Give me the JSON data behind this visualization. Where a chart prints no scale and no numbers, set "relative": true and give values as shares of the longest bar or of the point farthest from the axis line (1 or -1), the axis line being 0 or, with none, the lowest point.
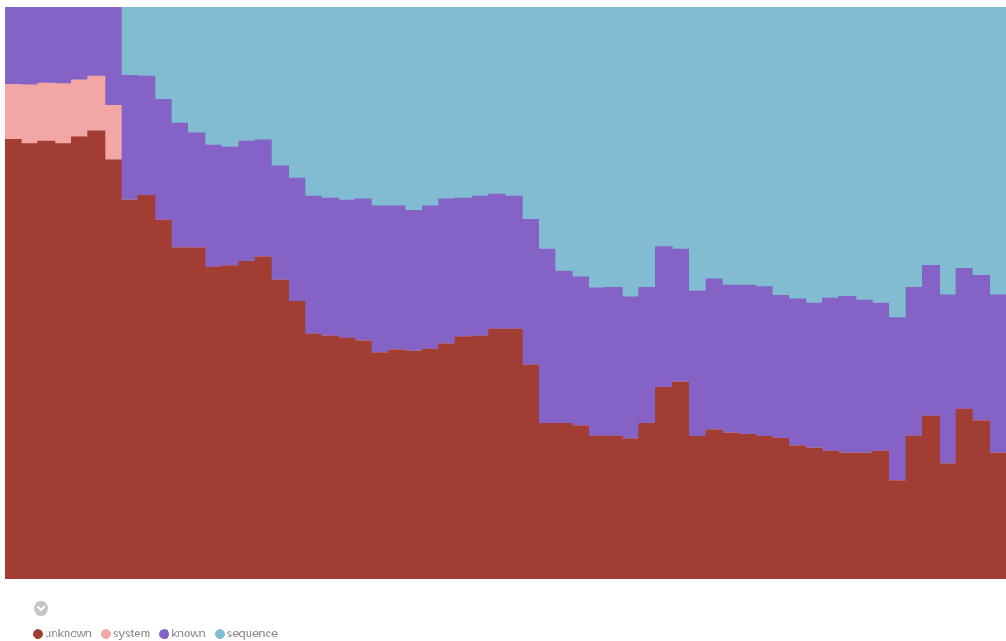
{
  "chart_data": {
    "type": "bar",
    "stacked": true,
    "relative": true,
    "legend": "bottom left",
    "categories": [
      null,
      null,
      null,
      null,
      null,
      null,
      null,
      null,
      null,
      null,
      null,
      null,
      null,
      null,
      null,
      null,
      null,
      null,
      null,
      null,
      null,
      null,
      null,
      null,
      null,
      null,
      null,
      null,
      null,
      null,
      null,
      null,
      null,
      null,
      null,
      null,
      null,
      null,
      null,
      null,
      null,
      null,
      null,
      null,
      null,
      null,
      null,
      null,
      null,
      null,
      null,
      null,
      null,
      null,
      null,
      null,
      null,
      null,
      null,
      null
    ],
    "series": [
      {
        "name": "unknown",
        "color": "#a23d33",
        "values": [
          0.769,
          0.762,
          0.766,
          0.762,
          0.773,
          0.784,
          0.733,
          0.663,
          0.672,
          0.628,
          0.579,
          0.579,
          0.545,
          0.547,
          0.556,
          0.563,
          0.523,
          0.486,
          0.429,
          0.426,
          0.421,
          0.417,
          0.396,
          0.401,
          0.399,
          0.402,
          0.412,
          0.423,
          0.426,
          0.437,
          0.437,
          0.375,
          0.273,
          0.273,
          0.269,
          0.251,
          0.251,
          0.245,
          0.273,
          0.335,
          0.345,
          0.25,
          0.261,
          0.256,
          0.254,
          0.25,
          0.246,
          0.234,
          0.229,
          0.224,
          0.221,
          0.221,
          0.224,
          0.172,
          0.251,
          0.286,
          0.202,
          0.297,
          0.277,
          0.221
        ]
      },
      {
        "name": "system",
        "color": "#f2a7a6",
        "values": [
          0.097,
          0.103,
          0.102,
          0.105,
          0.1,
          0.095,
          0.095,
          0,
          0,
          0,
          0,
          0,
          0,
          0,
          0,
          0,
          0,
          0,
          0,
          0,
          0,
          0,
          0,
          0,
          0,
          0,
          0,
          0,
          0,
          0,
          0,
          0,
          0,
          0,
          0,
          0,
          0,
          0,
          0,
          0,
          0,
          0,
          0,
          0,
          0,
          0,
          0,
          0,
          0,
          0,
          0,
          0,
          0,
          0,
          0,
          0,
          0,
          0,
          0,
          0
        ]
      },
      {
        "name": "known",
        "color": "#8462c6",
        "values": [
          0.134,
          0.135,
          0.132,
          0.133,
          0.127,
          0.121,
          0.172,
          0.218,
          0.207,
          0.211,
          0.219,
          0.202,
          0.215,
          0.208,
          0.21,
          0.205,
          0.199,
          0.215,
          0.24,
          0.24,
          0.242,
          0.248,
          0.256,
          0.251,
          0.246,
          0.25,
          0.253,
          0.243,
          0.243,
          0.237,
          0.232,
          0.254,
          0.304,
          0.266,
          0.259,
          0.258,
          0.259,
          0.248,
          0.237,
          0.246,
          0.232,
          0.254,
          0.264,
          0.259,
          0.261,
          0.261,
          0.251,
          0.256,
          0.254,
          0.267,
          0.273,
          0.267,
          0.259,
          0.285,
          0.259,
          0.262,
          0.296,
          0.246,
          0.254,
          0.277
        ]
      },
      {
        "name": "sequence",
        "color": "#82bcd3",
        "values": [
          0,
          0,
          0,
          0,
          0,
          0,
          0,
          0.119,
          0.121,
          0.161,
          0.202,
          0.219,
          0.24,
          0.245,
          0.234,
          0.232,
          0.278,
          0.299,
          0.331,
          0.334,
          0.337,
          0.335,
          0.348,
          0.348,
          0.355,
          0.348,
          0.335,
          0.334,
          0.331,
          0.326,
          0.331,
          0.371,
          0.423,
          0.461,
          0.472,
          0.491,
          0.49,
          0.507,
          0.49,
          0.419,
          0.423,
          0.496,
          0.475,
          0.485,
          0.485,
          0.489,
          0.503,
          0.51,
          0.517,
          0.509,
          0.506,
          0.512,
          0.517,
          0.543,
          0.49,
          0.452,
          0.502,
          0.457,
          0.469,
          0.502
        ]
      }
    ]
  }
}
